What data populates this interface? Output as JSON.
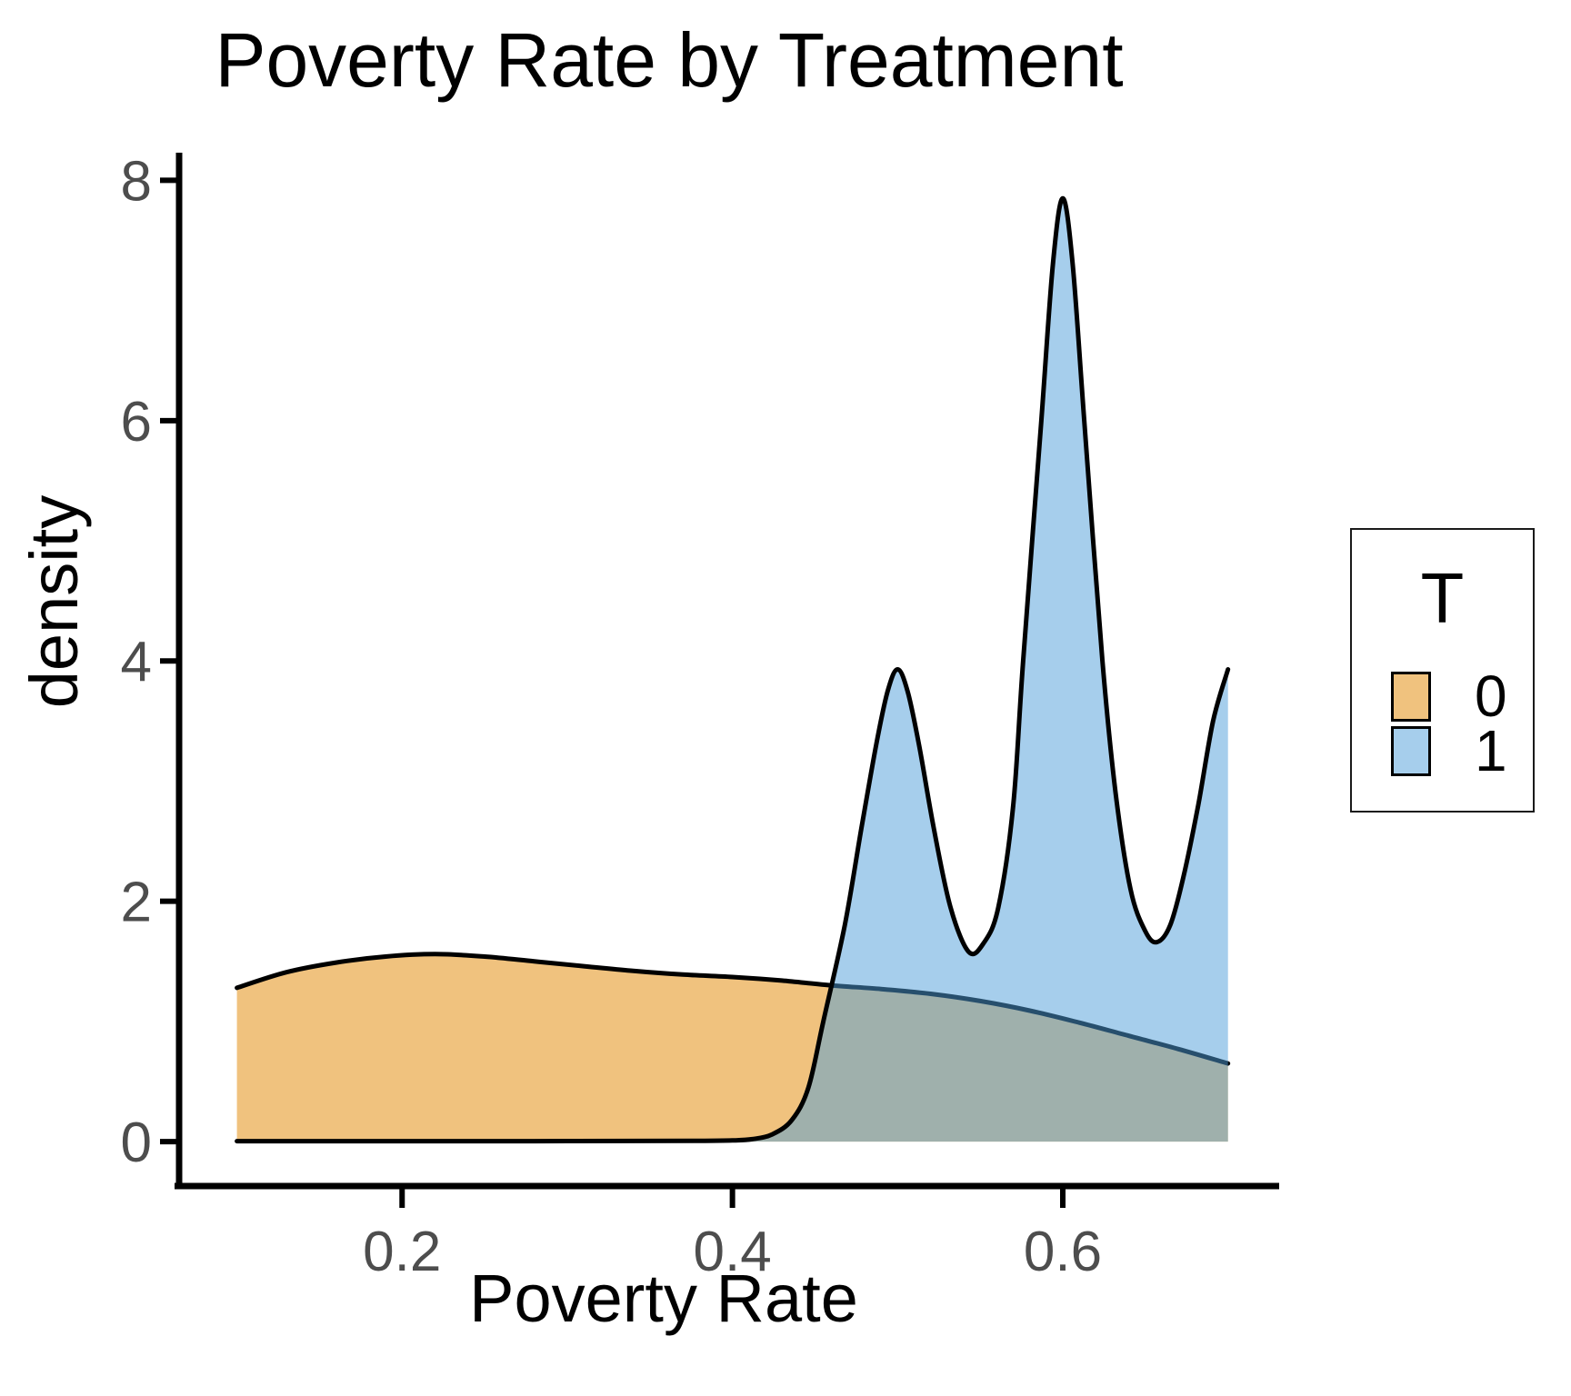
{
  "chart_data": {
    "type": "area",
    "subtype": "overlapping-density",
    "title": "Poverty Rate by Treatment",
    "xlabel": "Poverty Rate",
    "ylabel": "density",
    "grid": false,
    "xlim": [
      0.065,
      0.731
    ],
    "ylim": [
      -0.37,
      8.23
    ],
    "x_ticks": {
      "values": [
        0.2,
        0.4,
        0.6
      ],
      "labels": [
        "0.2",
        "0.4",
        "0.6"
      ]
    },
    "y_ticks": {
      "values": [
        0,
        2,
        4,
        6,
        8
      ],
      "labels": [
        "0",
        "2",
        "4",
        "6",
        "8"
      ]
    },
    "colors": {
      "axis_line": "#000000",
      "tick_mark": "#000000",
      "tick_label": "#4d4d4d",
      "curve_outline": "#000000",
      "orange_fill": "#F0C27E",
      "blue_fill_base": "#4D9DD9",
      "blue_fill_composited": "#A6CEEC",
      "overlap_observed": "#9CB3AE"
    },
    "legend": {
      "title": "T",
      "position": "right",
      "entries": [
        {
          "label": "0",
          "swatch": "#F0C27E"
        },
        {
          "label": "1",
          "swatch": "#A6CEEC"
        }
      ]
    },
    "series": [
      {
        "name": "0",
        "fill": "#F0C27E",
        "fill_opacity": 1,
        "stroke": "#000000",
        "points": [
          [
            0.1,
            1.28
          ],
          [
            0.13,
            1.41
          ],
          [
            0.16,
            1.49
          ],
          [
            0.19,
            1.54
          ],
          [
            0.22,
            1.56
          ],
          [
            0.25,
            1.54
          ],
          [
            0.28,
            1.5
          ],
          [
            0.31,
            1.46
          ],
          [
            0.34,
            1.42
          ],
          [
            0.37,
            1.39
          ],
          [
            0.4,
            1.37
          ],
          [
            0.43,
            1.34
          ],
          [
            0.46,
            1.3
          ],
          [
            0.49,
            1.27
          ],
          [
            0.52,
            1.23
          ],
          [
            0.55,
            1.17
          ],
          [
            0.58,
            1.09
          ],
          [
            0.61,
            0.99
          ],
          [
            0.64,
            0.88
          ],
          [
            0.67,
            0.77
          ],
          [
            0.7,
            0.65
          ]
        ]
      },
      {
        "name": "1",
        "fill": "#4D9DD9",
        "fill_opacity": 0.5,
        "stroke": "#000000",
        "points": [
          [
            0.1,
            0.004
          ],
          [
            0.16,
            0.004
          ],
          [
            0.22,
            0.004
          ],
          [
            0.28,
            0.004
          ],
          [
            0.34,
            0.005
          ],
          [
            0.38,
            0.006
          ],
          [
            0.4,
            0.01
          ],
          [
            0.412,
            0.02
          ],
          [
            0.424,
            0.06
          ],
          [
            0.436,
            0.18
          ],
          [
            0.446,
            0.45
          ],
          [
            0.455,
            1.0
          ],
          [
            0.468,
            1.8
          ],
          [
            0.478,
            2.6
          ],
          [
            0.487,
            3.3
          ],
          [
            0.494,
            3.75
          ],
          [
            0.5,
            3.93
          ],
          [
            0.506,
            3.75
          ],
          [
            0.513,
            3.3
          ],
          [
            0.522,
            2.6
          ],
          [
            0.532,
            1.95
          ],
          [
            0.543,
            1.58
          ],
          [
            0.552,
            1.65
          ],
          [
            0.561,
            1.95
          ],
          [
            0.57,
            2.8
          ],
          [
            0.576,
            4.0
          ],
          [
            0.587,
            6.0
          ],
          [
            0.594,
            7.3
          ],
          [
            0.6,
            7.85
          ],
          [
            0.606,
            7.3
          ],
          [
            0.613,
            6.0
          ],
          [
            0.624,
            4.0
          ],
          [
            0.632,
            2.9
          ],
          [
            0.641,
            2.1
          ],
          [
            0.65,
            1.75
          ],
          [
            0.657,
            1.66
          ],
          [
            0.665,
            1.8
          ],
          [
            0.673,
            2.2
          ],
          [
            0.682,
            2.8
          ],
          [
            0.691,
            3.5
          ],
          [
            0.7,
            3.93
          ]
        ]
      }
    ]
  }
}
